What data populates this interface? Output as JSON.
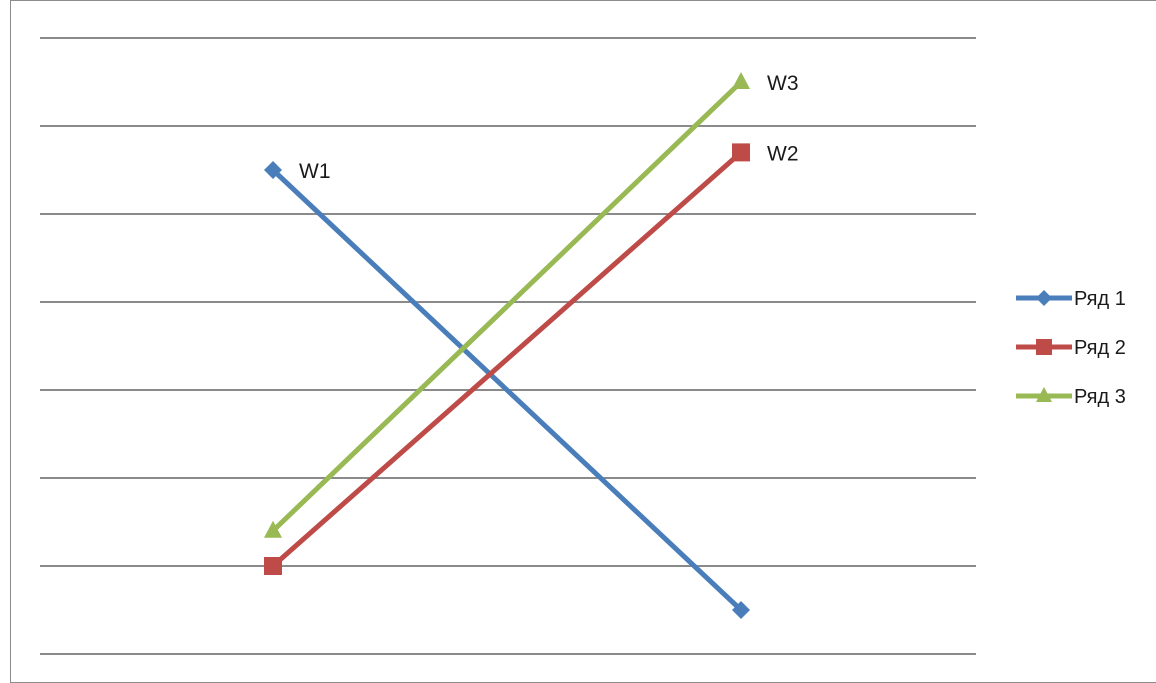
{
  "chart_data": {
    "type": "line",
    "x": [
      1,
      2
    ],
    "ylim": [
      0,
      7
    ],
    "grid": true,
    "legend": "right",
    "series": [
      {
        "name": "Ряд 1",
        "color": "#4a7ebb",
        "marker": "diamond",
        "values": [
          5.5,
          0.5
        ],
        "label": "W1",
        "label_index": 0
      },
      {
        "name": "Ряд 2",
        "color": "#be4b48",
        "marker": "square",
        "values": [
          1.0,
          5.7
        ],
        "label": "W2",
        "label_index": 1
      },
      {
        "name": "Ряд 3",
        "color": "#98b954",
        "marker": "triangle",
        "values": [
          1.4,
          6.5
        ],
        "label": "W3",
        "label_index": 1
      }
    ]
  }
}
